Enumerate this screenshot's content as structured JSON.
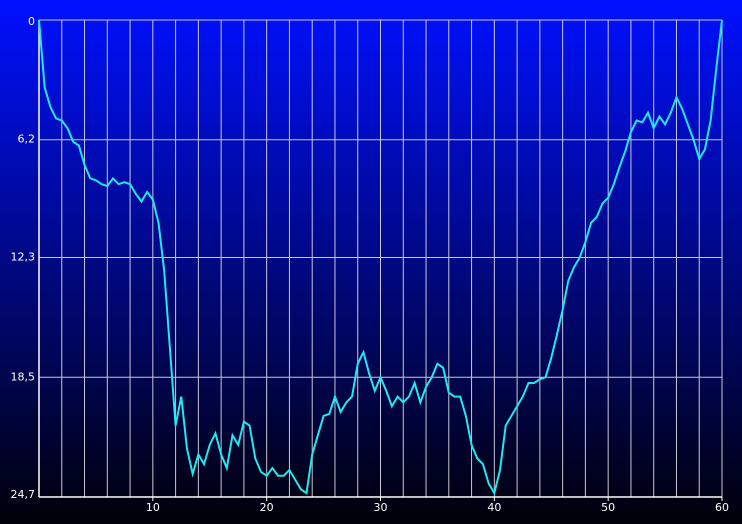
{
  "chart_data": {
    "type": "line",
    "x": [
      0,
      0.5,
      1,
      1.5,
      2,
      2.5,
      3,
      3.5,
      4,
      4.5,
      5,
      5.5,
      6,
      6.5,
      7,
      7.5,
      8,
      8.5,
      9,
      9.5,
      10,
      10.5,
      11,
      11.5,
      12,
      12.5,
      13,
      13.5,
      14,
      14.5,
      15,
      15.5,
      16,
      16.5,
      17,
      17.5,
      18,
      18.5,
      19,
      19.5,
      20,
      20.5,
      21,
      21.5,
      22,
      22.5,
      23,
      23.5,
      24,
      24.5,
      25,
      25.5,
      26,
      26.5,
      27,
      27.5,
      28,
      28.5,
      29,
      29.5,
      30,
      30.5,
      31,
      31.5,
      32,
      32.5,
      33,
      33.5,
      34,
      34.5,
      35,
      35.5,
      36,
      36.5,
      37,
      37.5,
      38,
      38.5,
      39,
      39.5,
      40,
      40.5,
      41,
      41.5,
      42,
      42.5,
      43,
      43.5,
      44,
      44.5,
      45,
      45.5,
      46,
      46.5,
      47,
      47.5,
      48,
      48.5,
      49,
      49.5,
      50,
      50.5,
      51,
      51.5,
      52,
      52.5,
      53,
      53.5,
      54,
      54.5,
      55,
      55.5,
      56,
      56.5,
      57,
      57.5,
      58,
      58.5,
      59,
      59.5,
      60
    ],
    "series": [
      {
        "color": "#22e8f0",
        "values": [
          0,
          3.5,
          4.5,
          5.1,
          5.2,
          5.6,
          6.3,
          6.5,
          7.5,
          8.2,
          8.3,
          8.5,
          8.6,
          8.2,
          8.5,
          8.4,
          8.5,
          9.0,
          9.4,
          8.9,
          9.3,
          10.5,
          13,
          17,
          21,
          19.5,
          22.2,
          23.5,
          22.5,
          23,
          22,
          21.4,
          22.5,
          23.2,
          21.5,
          22,
          20.8,
          21,
          22.7,
          23.4,
          23.6,
          23.2,
          23.6,
          23.6,
          23.3,
          23.8,
          24.3,
          24.5,
          22.5,
          21.5,
          20.5,
          20.4,
          19.5,
          20.3,
          19.8,
          19.5,
          17.8,
          17.2,
          18.3,
          19.2,
          18.5,
          19.2,
          20,
          19.5,
          19.8,
          19.5,
          18.8,
          19.8,
          19.0,
          18.5,
          17.8,
          18,
          19.3,
          19.5,
          19.5,
          20.5,
          22,
          22.7,
          23.0,
          24,
          24.5,
          23.3,
          21,
          20.5,
          20,
          19.5,
          18.8,
          18.8,
          18.6,
          18.5,
          17.5,
          16.3,
          15,
          13.5,
          12.8,
          12.3,
          11.5,
          10.5,
          10.2,
          9.5,
          9.2,
          8.5,
          7.6,
          6.8,
          5.8,
          5.2,
          5.3,
          4.8,
          5.6,
          5.0,
          5.4,
          4.8,
          4.0,
          4.6,
          5.4,
          6.2,
          7.2,
          6.7,
          5.2,
          2.5,
          0
        ]
      }
    ],
    "xlim": [
      0,
      60
    ],
    "xticks": [
      10,
      20,
      30,
      40,
      50,
      60
    ],
    "x_grid": [
      2,
      4,
      6,
      8,
      10,
      12,
      14,
      16,
      18,
      20,
      22,
      24,
      26,
      28,
      30,
      32,
      34,
      36,
      38,
      40,
      42,
      44,
      46,
      48,
      50,
      52,
      54,
      56,
      58,
      60
    ],
    "ylim": [
      0,
      24.7
    ],
    "inverted_y": true,
    "yticks": [
      0,
      {
        "value": 6.2,
        "label": "6,2"
      },
      {
        "value": 12.3,
        "label": "12,3"
      },
      {
        "value": 18.5,
        "label": "18,5"
      },
      {
        "value": 24.7,
        "label": "24,7"
      }
    ],
    "grid": true
  }
}
